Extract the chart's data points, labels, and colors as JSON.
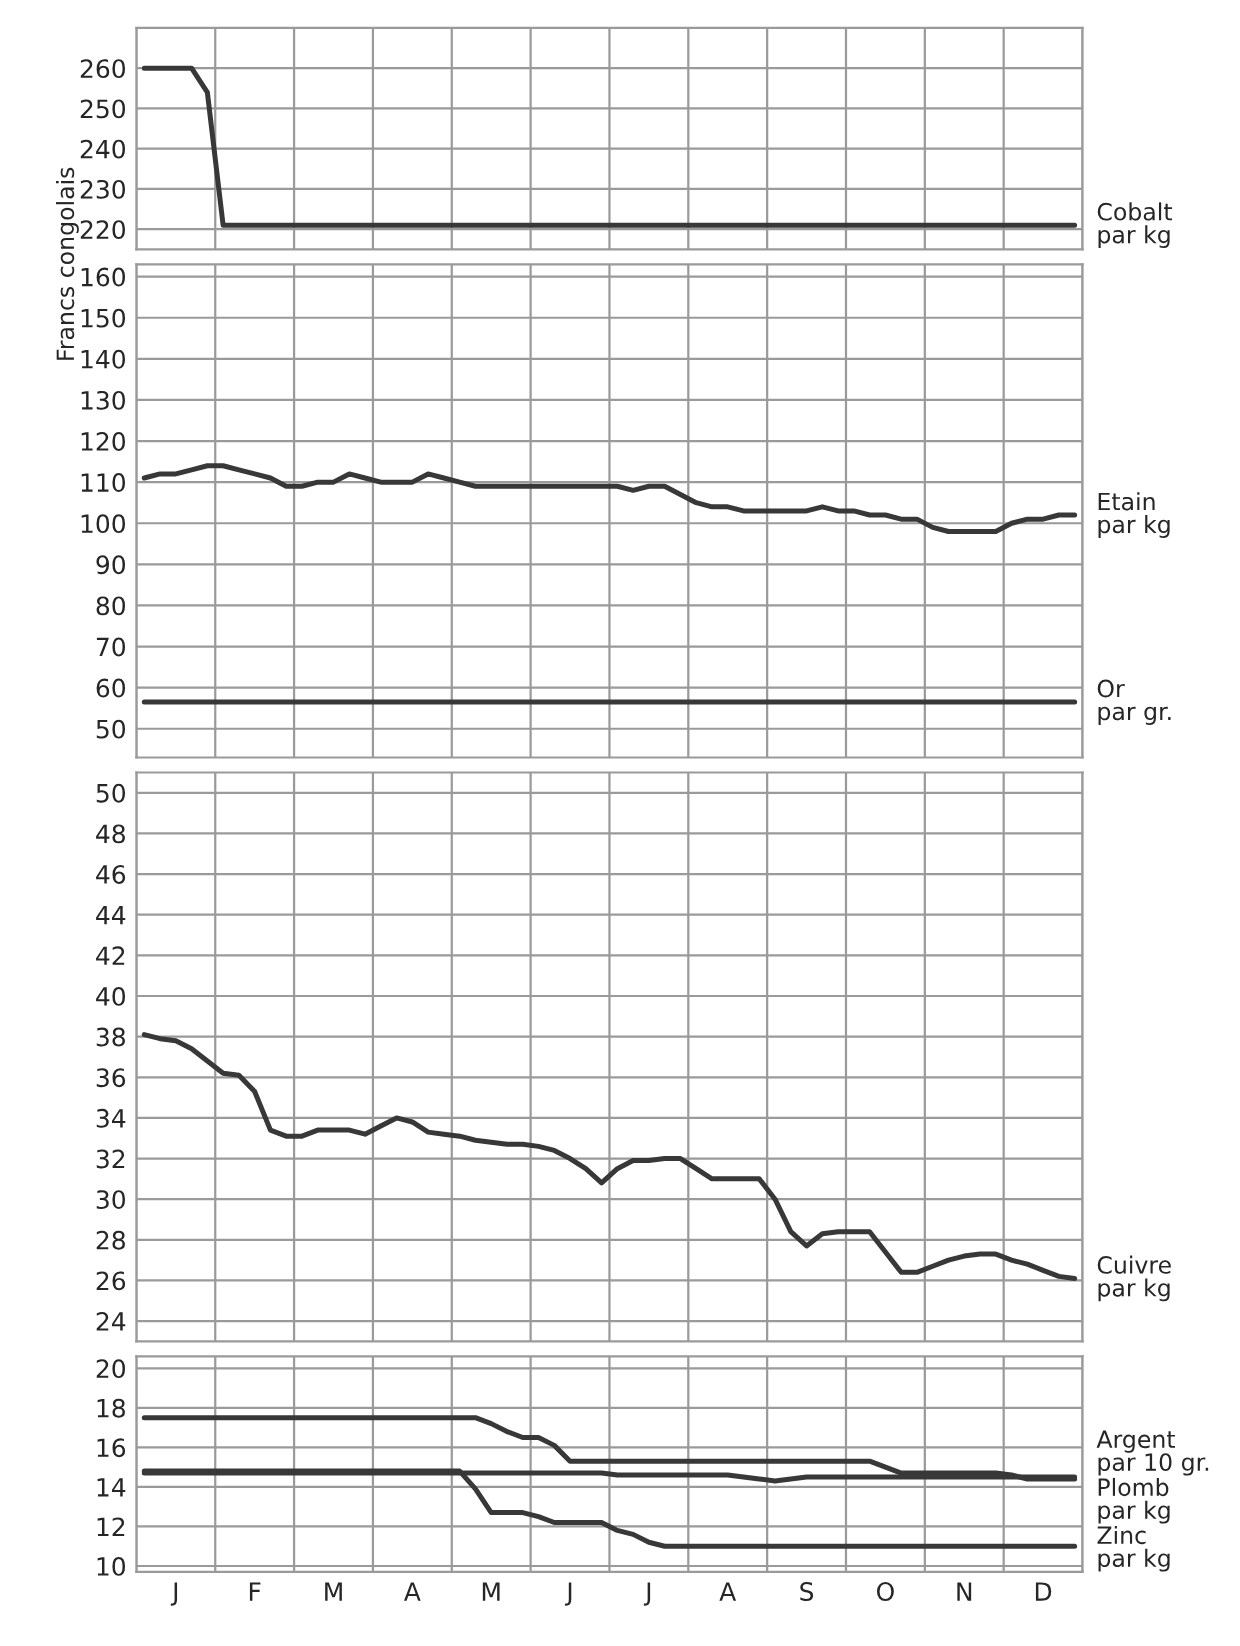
{
  "chart_data": [
    {
      "type": "line",
      "categories": [
        null,
        null,
        null,
        null,
        null,
        null,
        null,
        null,
        null,
        null,
        null,
        null,
        null,
        null,
        null,
        null,
        null,
        null,
        null,
        null,
        null,
        null,
        null,
        null,
        null,
        null,
        null,
        null,
        null,
        null,
        null,
        null,
        null,
        null,
        null,
        null,
        null,
        null,
        null,
        null,
        null,
        null,
        null,
        null,
        null,
        null,
        null,
        null,
        null,
        null,
        null,
        null,
        null,
        null,
        null,
        null,
        null,
        null,
        null,
        null
      ],
      "ylim": [
        215,
        270
      ],
      "yticks": [
        220,
        230,
        240,
        250,
        260
      ],
      "tick_labels": "y",
      "grid": true,
      "series": [
        {
          "name": "Cobalt\npar kg",
          "color": "#383838",
          "values": [
            260,
            260,
            260,
            260,
            254,
            221,
            221,
            221,
            221,
            221,
            221,
            221,
            221,
            221,
            221,
            221,
            221,
            221,
            221,
            221,
            221,
            221,
            221,
            221,
            221,
            221,
            221,
            221,
            221,
            221,
            221,
            221,
            221,
            221,
            221,
            221,
            221,
            221,
            221,
            221,
            221,
            221,
            221,
            221,
            221,
            221,
            221,
            221,
            221,
            221,
            221,
            221,
            221,
            221,
            221,
            221,
            221,
            221,
            221,
            221
          ]
        }
      ]
    },
    {
      "type": "line",
      "categories": [
        null,
        null,
        null,
        null,
        null,
        null,
        null,
        null,
        null,
        null,
        null,
        null,
        null,
        null,
        null,
        null,
        null,
        null,
        null,
        null,
        null,
        null,
        null,
        null,
        null,
        null,
        null,
        null,
        null,
        null,
        null,
        null,
        null,
        null,
        null,
        null,
        null,
        null,
        null,
        null,
        null,
        null,
        null,
        null,
        null,
        null,
        null,
        null,
        null,
        null,
        null,
        null,
        null,
        null,
        null,
        null,
        null,
        null,
        null,
        null
      ],
      "ylim": [
        43,
        163
      ],
      "yticks": [
        50,
        60,
        70,
        80,
        90,
        100,
        110,
        120,
        130,
        140,
        150,
        160
      ],
      "tick_labels": "y",
      "grid": true,
      "ylabel": "Francs congolais",
      "series": [
        {
          "name": "Etain\npar kg",
          "color": "#383838",
          "values": [
            111,
            112,
            112,
            113,
            114,
            114,
            113,
            112,
            111,
            109,
            109,
            110,
            110,
            112,
            111,
            110,
            110,
            110,
            112,
            111,
            110,
            109,
            109,
            109,
            109,
            109,
            109,
            109,
            109,
            109,
            109,
            108,
            109,
            109,
            107,
            105,
            104,
            104,
            103,
            103,
            103,
            103,
            103,
            104,
            103,
            103,
            102,
            102,
            101,
            101,
            99,
            98,
            98,
            98,
            98,
            100,
            101,
            101,
            102,
            102
          ]
        },
        {
          "name": "Or\npar gr.",
          "color": "#383838",
          "values": [
            56.5,
            56.5,
            56.5,
            56.5,
            56.5,
            56.5,
            56.5,
            56.5,
            56.5,
            56.5,
            56.5,
            56.5,
            56.5,
            56.5,
            56.5,
            56.5,
            56.5,
            56.5,
            56.5,
            56.5,
            56.5,
            56.5,
            56.5,
            56.5,
            56.5,
            56.5,
            56.5,
            56.5,
            56.5,
            56.5,
            56.5,
            56.5,
            56.5,
            56.5,
            56.5,
            56.5,
            56.5,
            56.5,
            56.5,
            56.5,
            56.5,
            56.5,
            56.5,
            56.5,
            56.5,
            56.5,
            56.5,
            56.5,
            56.5,
            56.5,
            56.5,
            56.5,
            56.5,
            56.5,
            56.5,
            56.5,
            56.5,
            56.5,
            56.5,
            56.5
          ]
        }
      ]
    },
    {
      "type": "line",
      "categories": [
        null,
        null,
        null,
        null,
        null,
        null,
        null,
        null,
        null,
        null,
        null,
        null,
        null,
        null,
        null,
        null,
        null,
        null,
        null,
        null,
        null,
        null,
        null,
        null,
        null,
        null,
        null,
        null,
        null,
        null,
        null,
        null,
        null,
        null,
        null,
        null,
        null,
        null,
        null,
        null,
        null,
        null,
        null,
        null,
        null,
        null,
        null,
        null,
        null,
        null,
        null,
        null,
        null,
        null,
        null,
        null,
        null,
        null,
        null,
        null
      ],
      "ylim": [
        23,
        51
      ],
      "yticks": [
        24,
        26,
        28,
        30,
        32,
        34,
        36,
        38,
        40,
        42,
        44,
        46,
        48,
        50
      ],
      "tick_labels": "y",
      "grid": true,
      "series": [
        {
          "name": "Cuivre\npar kg",
          "color": "#383838",
          "values": [
            38.1,
            37.9,
            37.8,
            37.4,
            36.8,
            36.2,
            36.1,
            35.3,
            33.4,
            33.1,
            33.1,
            33.4,
            33.4,
            33.4,
            33.2,
            33.6,
            34.0,
            33.8,
            33.3,
            33.2,
            33.1,
            32.9,
            32.8,
            32.7,
            32.7,
            32.6,
            32.4,
            32.0,
            31.5,
            30.8,
            31.5,
            31.9,
            31.9,
            32.0,
            32.0,
            31.5,
            31.0,
            31.0,
            31.0,
            31.0,
            30.0,
            28.4,
            27.7,
            28.3,
            28.4,
            28.4,
            28.4,
            27.4,
            26.4,
            26.4,
            26.7,
            27.0,
            27.2,
            27.3,
            27.3,
            27.0,
            26.8,
            26.5,
            26.2,
            26.1
          ]
        }
      ]
    },
    {
      "type": "line",
      "categories": [
        null,
        null,
        "J",
        null,
        null,
        null,
        null,
        "F",
        null,
        null,
        null,
        null,
        "M",
        null,
        null,
        null,
        null,
        "A",
        null,
        null,
        null,
        null,
        "M",
        null,
        null,
        null,
        null,
        "J",
        null,
        null,
        null,
        null,
        "J",
        null,
        null,
        null,
        null,
        "A",
        null,
        null,
        null,
        null,
        "S",
        null,
        null,
        null,
        null,
        "O",
        null,
        null,
        null,
        null,
        "N",
        null,
        null,
        null,
        null,
        "D",
        null,
        null
      ],
      "ylim": [
        9.7,
        20.6
      ],
      "yticks": [
        10,
        12,
        14,
        16,
        18,
        20
      ],
      "grid": true,
      "series": [
        {
          "name": "Argent\npar 10 gr.",
          "color": "#383838",
          "values": [
            17.5,
            17.5,
            17.5,
            17.5,
            17.5,
            17.5,
            17.5,
            17.5,
            17.5,
            17.5,
            17.5,
            17.5,
            17.5,
            17.5,
            17.5,
            17.5,
            17.5,
            17.5,
            17.5,
            17.5,
            17.5,
            17.5,
            17.2,
            16.8,
            16.5,
            16.5,
            16.1,
            15.3,
            15.3,
            15.3,
            15.3,
            15.3,
            15.3,
            15.3,
            15.3,
            15.3,
            15.3,
            15.3,
            15.3,
            15.3,
            15.3,
            15.3,
            15.3,
            15.3,
            15.3,
            15.3,
            15.3,
            15.0,
            14.7,
            14.7,
            14.7,
            14.7,
            14.7,
            14.7,
            14.7,
            14.6,
            14.4,
            14.4,
            14.4,
            14.4
          ]
        },
        {
          "name": "Plomb\npar kg",
          "color": "#383838",
          "values": [
            14.7,
            14.7,
            14.7,
            14.7,
            14.7,
            14.7,
            14.7,
            14.7,
            14.7,
            14.7,
            14.7,
            14.7,
            14.7,
            14.7,
            14.7,
            14.7,
            14.7,
            14.7,
            14.7,
            14.7,
            14.7,
            14.7,
            14.7,
            14.7,
            14.7,
            14.7,
            14.7,
            14.7,
            14.7,
            14.7,
            14.6,
            14.6,
            14.6,
            14.6,
            14.6,
            14.6,
            14.6,
            14.6,
            14.5,
            14.4,
            14.3,
            14.4,
            14.5,
            14.5,
            14.5,
            14.5,
            14.5,
            14.5,
            14.5,
            14.5,
            14.5,
            14.5,
            14.5,
            14.5,
            14.5,
            14.5,
            14.5,
            14.5,
            14.5,
            14.5
          ]
        },
        {
          "name": "Zinc\npar kg",
          "color": "#383838",
          "values": [
            14.8,
            14.8,
            14.8,
            14.8,
            14.8,
            14.8,
            14.8,
            14.8,
            14.8,
            14.8,
            14.8,
            14.8,
            14.8,
            14.8,
            14.8,
            14.8,
            14.8,
            14.8,
            14.8,
            14.8,
            14.8,
            13.9,
            12.7,
            12.7,
            12.7,
            12.5,
            12.2,
            12.2,
            12.2,
            12.2,
            11.8,
            11.6,
            11.2,
            11.0,
            11.0,
            11.0,
            11.0,
            11.0,
            11.0,
            11.0,
            11.0,
            11.0,
            11.0,
            11.0,
            11.0,
            11.0,
            11.0,
            11.0,
            11.0,
            11.0,
            11.0,
            11.0,
            11.0,
            11.0,
            11.0,
            11.0,
            11.0,
            11.0,
            11.0,
            11.0
          ]
        }
      ]
    }
  ]
}
